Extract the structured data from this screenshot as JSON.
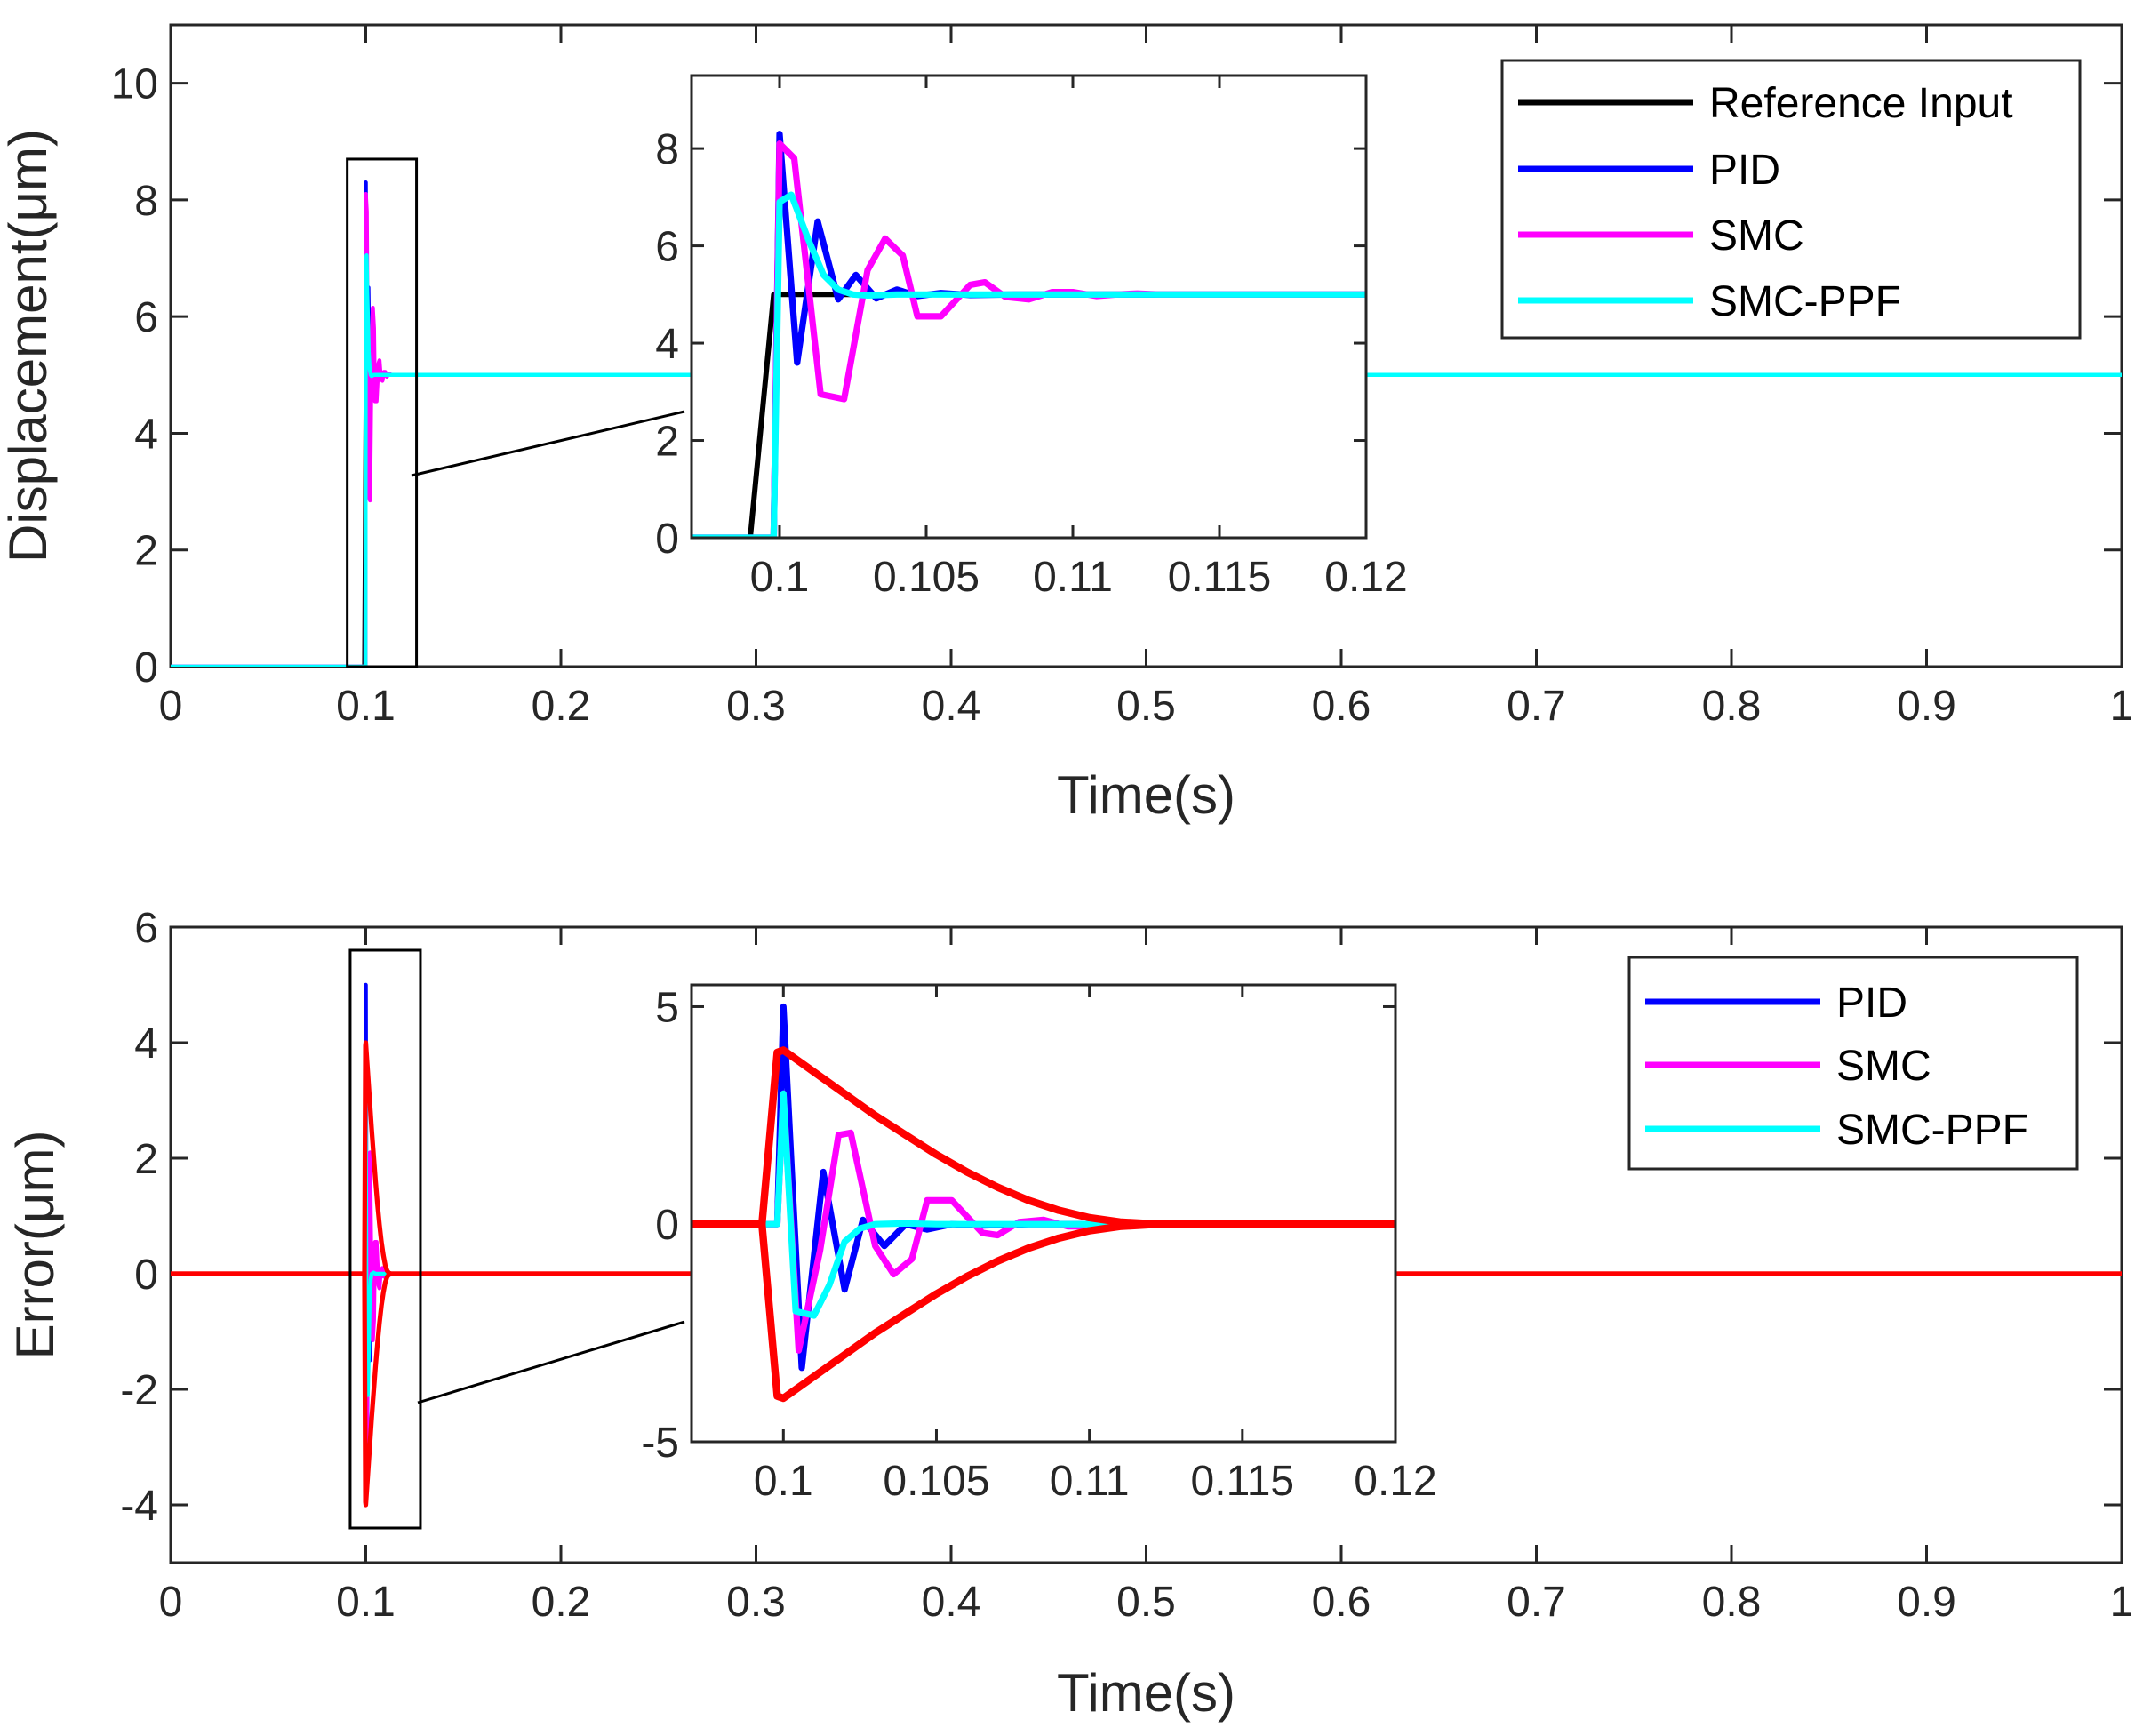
{
  "chart_data": [
    {
      "id": "top",
      "type": "line",
      "xlabel": "Time(s)",
      "ylabel": "Displacement(μm)",
      "xlim": [
        0,
        1
      ],
      "ylim": [
        0,
        11
      ],
      "xticks": [
        0,
        0.1,
        0.2,
        0.3,
        0.4,
        0.5,
        0.6,
        0.7,
        0.8,
        0.9,
        1
      ],
      "xtick_labels": [
        "0",
        "0.1",
        "0.2",
        "0.3",
        "0.4",
        "0.5",
        "0.6",
        "0.7",
        "0.8",
        "0.9",
        "1"
      ],
      "yticks": [
        0,
        2,
        4,
        6,
        8,
        10
      ],
      "ytick_labels": [
        "0",
        "2",
        "4",
        "6",
        "8",
        "10"
      ],
      "legend_position": "top-right",
      "legend": [
        "Reference Input",
        "PID",
        "SMC",
        "SMC-PPF"
      ],
      "zoom_box": {
        "x": [
          0.0905,
          0.126
        ],
        "y": [
          0,
          8.7
        ]
      },
      "series": [
        {
          "name": "Reference Input",
          "color": "#000000",
          "x": [
            0,
            0.099,
            0.0998,
            1
          ],
          "y": [
            0,
            0,
            5,
            5
          ]
        },
        {
          "name": "PID",
          "color": "#0000ff",
          "x": [
            0,
            0.0994,
            0.0998,
            0.1,
            0.1006,
            0.1013,
            0.102,
            0.1026,
            0.1033,
            0.104,
            0.1047,
            0.1055,
            0.1065,
            0.108,
            1
          ],
          "y": [
            0,
            0,
            0,
            8.3,
            3.6,
            6.5,
            4.9,
            5.4,
            4.92,
            5.1,
            4.97,
            5.03,
            4.99,
            5,
            5
          ]
        },
        {
          "name": "SMC",
          "color": "#ff00ff",
          "x": [
            0,
            0.0993,
            0.0998,
            0.1,
            0.1005,
            0.1014,
            0.1022,
            0.103,
            0.1036,
            0.1042,
            0.1047,
            0.1055,
            0.1065,
            0.107,
            0.1077,
            0.1085,
            0.1093,
            0.11,
            0.1108,
            0.1115,
            0.1122,
            0.113,
            1
          ],
          "y": [
            0,
            0,
            0,
            8.1,
            7.8,
            2.95,
            2.85,
            5.5,
            6.15,
            5.8,
            4.55,
            4.55,
            5.2,
            5.25,
            4.95,
            4.9,
            5.05,
            5.05,
            4.97,
            5.0,
            5.02,
            5.0,
            5
          ]
        },
        {
          "name": "SMC-PPF",
          "color": "#00ffff",
          "x": [
            0,
            0.0993,
            0.0998,
            0.1,
            0.1004,
            0.101,
            0.1015,
            0.102,
            0.1025,
            0.103,
            0.104,
            0.105,
            1
          ],
          "y": [
            0,
            0,
            0,
            6.9,
            7.05,
            6.1,
            5.4,
            5.1,
            5.0,
            4.98,
            5.0,
            5,
            5
          ]
        }
      ],
      "inset": {
        "xlim": [
          0.097,
          0.12
        ],
        "ylim": [
          0,
          9.5
        ],
        "xticks": [
          0.1,
          0.105,
          0.11,
          0.115,
          0.12
        ],
        "xtick_labels": [
          "0.1",
          "0.105",
          "0.11",
          "0.115",
          "0.12"
        ],
        "yticks": [
          0,
          2,
          4,
          6,
          8
        ],
        "ytick_labels": [
          "0",
          "2",
          "4",
          "6",
          "8"
        ]
      }
    },
    {
      "id": "bottom",
      "type": "line",
      "xlabel": "Time(s)",
      "ylabel": "Error(μm)",
      "xlim": [
        0,
        1
      ],
      "ylim": [
        -5,
        6
      ],
      "xticks": [
        0,
        0.1,
        0.2,
        0.3,
        0.4,
        0.5,
        0.6,
        0.7,
        0.8,
        0.9,
        1
      ],
      "xtick_labels": [
        "0",
        "0.1",
        "0.2",
        "0.3",
        "0.4",
        "0.5",
        "0.6",
        "0.7",
        "0.8",
        "0.9",
        "1"
      ],
      "yticks": [
        -4,
        -2,
        0,
        2,
        4,
        6
      ],
      "ytick_labels": [
        "-4",
        "-2",
        "0",
        "2",
        "4",
        "6"
      ],
      "legend_position": "top-right",
      "legend": [
        "PID",
        "SMC",
        "SMC-PPF"
      ],
      "zoom_box": {
        "x": [
          0.092,
          0.128
        ],
        "y": [
          -4.4,
          5.6
        ]
      },
      "series": [
        {
          "name": "PID",
          "color": "#0000ff",
          "x": [
            0,
            0.0995,
            0.0998,
            0.1,
            0.1006,
            0.1013,
            0.102,
            0.1026,
            0.1033,
            0.104,
            0.1047,
            0.1055,
            0.1065,
            0.108,
            1
          ],
          "y": [
            0,
            0,
            0,
            5.0,
            -3.3,
            1.2,
            -1.5,
            0.1,
            -0.5,
            0,
            -0.12,
            0,
            -0.03,
            0,
            0
          ]
        },
        {
          "name": "SMC",
          "color": "#ff00ff",
          "x": [
            0,
            0.0993,
            0.0998,
            0.1,
            0.1005,
            0.1012,
            0.1018,
            0.1022,
            0.103,
            0.1036,
            0.1042,
            0.1047,
            0.1055,
            0.1065,
            0.107,
            0.1077,
            0.1085,
            0.1093,
            0.11,
            0.1108,
            0.1115,
            0.1122,
            0.113,
            1
          ],
          "y": [
            0,
            0,
            0,
            3.0,
            -2.9,
            -0.6,
            2.05,
            2.1,
            -0.5,
            -1.15,
            -0.8,
            0.55,
            0.55,
            -0.2,
            -0.25,
            0.05,
            0.1,
            -0.05,
            -0.05,
            0.03,
            0,
            -0.02,
            0,
            0
          ]
        },
        {
          "name": "SMC-PPF",
          "color": "#00ffff",
          "x": [
            0,
            0.0993,
            0.0998,
            0.1,
            0.1004,
            0.101,
            0.1015,
            0.102,
            0.1025,
            0.103,
            0.104,
            0.105,
            1
          ],
          "y": [
            0,
            0,
            0,
            3.0,
            -2.0,
            -2.1,
            -1.4,
            -0.4,
            -0.1,
            0,
            0.02,
            0,
            0
          ]
        },
        {
          "name": "Bound (upper)",
          "color": "#ff0000",
          "x": [
            0,
            0.0993,
            0.0998,
            0.1,
            0.101,
            0.102,
            0.103,
            0.104,
            0.105,
            0.106,
            0.107,
            0.108,
            0.109,
            0.11,
            0.111,
            0.112,
            0.113,
            0.114,
            1
          ],
          "y": [
            0,
            0,
            3.95,
            4.0,
            3.5,
            3.0,
            2.5,
            2.05,
            1.6,
            1.2,
            0.85,
            0.55,
            0.32,
            0.15,
            0.05,
            0.01,
            0,
            0,
            0
          ]
        },
        {
          "name": "Bound (lower)",
          "color": "#ff0000",
          "x": [
            0,
            0.0993,
            0.0998,
            0.1,
            0.101,
            0.102,
            0.103,
            0.104,
            0.105,
            0.106,
            0.107,
            0.108,
            0.109,
            0.11,
            0.111,
            0.112,
            0.113,
            0.114,
            1
          ],
          "y": [
            0,
            0,
            -3.95,
            -4.0,
            -3.5,
            -3.0,
            -2.5,
            -2.05,
            -1.6,
            -1.2,
            -0.85,
            -0.55,
            -0.32,
            -0.15,
            -0.05,
            -0.01,
            0,
            0,
            0
          ]
        }
      ],
      "inset": {
        "xlim": [
          0.097,
          0.12
        ],
        "ylim": [
          -5,
          5.5
        ],
        "xticks": [
          0.1,
          0.105,
          0.11,
          0.115,
          0.12
        ],
        "xtick_labels": [
          "0.1",
          "0.105",
          "0.11",
          "0.115",
          "0.12"
        ],
        "yticks": [
          -5,
          0,
          5
        ],
        "ytick_labels": [
          "-5",
          "0",
          "5"
        ]
      }
    }
  ]
}
